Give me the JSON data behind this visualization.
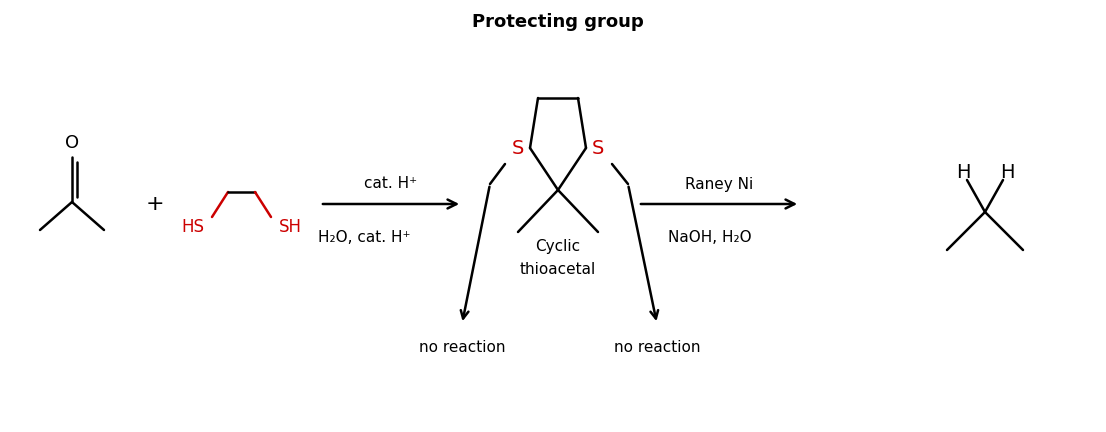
{
  "background_color": "#ffffff",
  "black": "#000000",
  "red": "#cc0000",
  "line_width": 1.8,
  "figsize": [
    11.06,
    4.32
  ],
  "dpi": 100,
  "title": "Protecting group",
  "title_fontsize": 13,
  "label_fontsize": 11,
  "mol_fontsize": 13,
  "cyclic_label": [
    "Cyclic",
    "thioacetal"
  ],
  "arrow1_label": "cat. H⁺",
  "arrow2_label": "Raney Ni",
  "left_branch_label": "H₂O, cat. H⁺",
  "right_branch_label": "NaOH, H₂O",
  "no_reaction": "no reaction"
}
